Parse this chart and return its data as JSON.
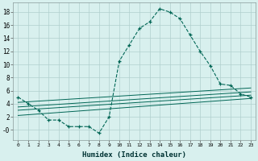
{
  "xlabel": "Humidex (Indice chaleur)",
  "background_color": "#d8f0ee",
  "grid_color": "#b0d0ce",
  "line_color": "#006655",
  "xlim": [
    -0.5,
    23.5
  ],
  "ylim": [
    -1.5,
    19.5
  ],
  "xticks": [
    0,
    1,
    2,
    3,
    4,
    5,
    6,
    7,
    8,
    9,
    10,
    11,
    12,
    13,
    14,
    15,
    16,
    17,
    18,
    19,
    20,
    21,
    22,
    23
  ],
  "yticks": [
    0,
    2,
    4,
    6,
    8,
    10,
    12,
    14,
    16,
    18
  ],
  "ytick_labels": [
    "-0",
    "2",
    "4",
    "6",
    "8",
    "10",
    "12",
    "14",
    "16",
    "18"
  ],
  "main_x": [
    0,
    1,
    2,
    3,
    4,
    5,
    6,
    7,
    8,
    9,
    10,
    11,
    12,
    13,
    14,
    15,
    16,
    17,
    18,
    19,
    20,
    21,
    22,
    23
  ],
  "main_y": [
    5,
    4,
    3,
    1.5,
    1.5,
    0.5,
    0.5,
    0.5,
    -0.5,
    2,
    10.5,
    13,
    15.5,
    16.5,
    18.5,
    18,
    17,
    14.5,
    12,
    9.8,
    7,
    6.8,
    5.5,
    5
  ],
  "line1_x": [
    0,
    23
  ],
  "line1_y": [
    3.0,
    5.3
  ],
  "line2_x": [
    0,
    23
  ],
  "line2_y": [
    3.5,
    5.8
  ],
  "line3_x": [
    0,
    23
  ],
  "line3_y": [
    4.2,
    6.4
  ],
  "line4_x": [
    0,
    23
  ],
  "line4_y": [
    2.2,
    4.8
  ]
}
